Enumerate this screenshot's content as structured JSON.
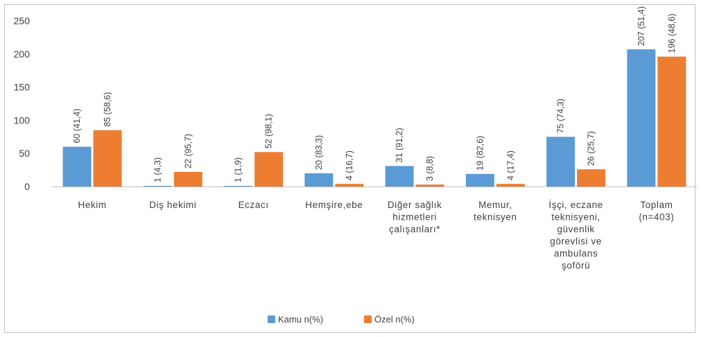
{
  "chart_data": {
    "type": "bar",
    "categories": [
      [
        "Hekim"
      ],
      [
        "Diş hekimi"
      ],
      [
        "Eczacı"
      ],
      [
        "Hemşire,ebe"
      ],
      [
        "Diğer sağlık",
        "hizmetleri",
        "çalışanları*"
      ],
      [
        "Memur,",
        "teknisyen"
      ],
      [
        "İşçi, eczane",
        "teknisyeni,",
        "güvenlik",
        "görevlisi ve",
        "ambulans",
        "şoförü"
      ],
      [
        "Toplam",
        "(n=403)"
      ]
    ],
    "series": [
      {
        "name": "Kamu n(%)",
        "color": "#5B9BD5",
        "values": [
          60,
          1,
          1,
          20,
          31,
          19,
          75,
          207
        ],
        "labels": [
          "60 (41,4)",
          "1 (4,3)",
          "1 (1,9)",
          "20 (83,3)",
          "31 (91,2)",
          "19 (82,6)",
          "75 (74,3)",
          "207 (51,4)"
        ]
      },
      {
        "name": "Özel n(%)",
        "color": "#ED7D31",
        "values": [
          85,
          22,
          52,
          4,
          3,
          4,
          26,
          196
        ],
        "labels": [
          "85 (58,6)",
          "22 (95,7)",
          "52 (98,1)",
          "4 (16,7)",
          "3 (8,8)",
          "4 (17,4)",
          "26 (25,7)",
          "196 (48,6)"
        ]
      }
    ],
    "ylim": [
      0,
      250
    ],
    "yticks": [
      0,
      50,
      100,
      150,
      200,
      250
    ],
    "grid": false,
    "legend": "bottom-center",
    "title": "",
    "xlabel": "",
    "ylabel": ""
  }
}
